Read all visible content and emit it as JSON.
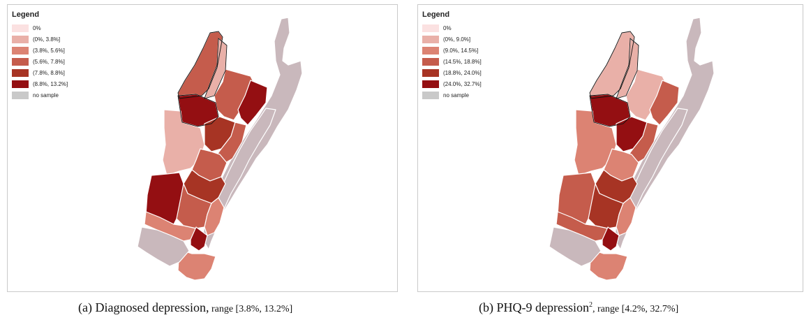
{
  "colors": {
    "c0": "#fbe1e1",
    "c1": "#e9b0a8",
    "c2": "#dc8373",
    "c3": "#c55c4c",
    "c4": "#a73424",
    "c5": "#940f12",
    "nosample": "#c9b8bc",
    "border": "#ffffff",
    "outline": "#111111"
  },
  "panels": [
    {
      "legend_title": "Legend",
      "legend": [
        {
          "label": "0%",
          "color": "#fbe1e1"
        },
        {
          "label": "(0%, 3.8%]",
          "color": "#e9b0a8"
        },
        {
          "label": "(3.8%, 5.6%]",
          "color": "#dc8373"
        },
        {
          "label": "(5.6%, 7.8%]",
          "color": "#c55c4c"
        },
        {
          "label": "(7.8%, 8.8%]",
          "color": "#a73424"
        },
        {
          "label": "(8.8%, 13.2%]",
          "color": "#940f12"
        },
        {
          "label": "no sample",
          "color": "#c9c9c9"
        }
      ],
      "caption_prefix": "(a) Diagnosed depression,",
      "caption_sup": "",
      "caption_range": " range [3.8%, 13.2%]",
      "region_classes": {
        "north_strip": 3,
        "north_right": 1,
        "ne_block": 3,
        "ne_dark": 5,
        "center_dark": 5,
        "west_large": 1,
        "mid_dark": 4,
        "mid_right": 3,
        "mid_center": 3,
        "south_dark_band": 4,
        "sw_dark": 5,
        "south_center": 3,
        "south_right": 2,
        "sw_lower": 2,
        "tip_dark": 5,
        "bottom_block": 2,
        "sw_corner": "nosample",
        "east_strip": "nosample",
        "north_tail": "nosample"
      }
    },
    {
      "legend_title": "Legend",
      "legend": [
        {
          "label": "0%",
          "color": "#fbe1e1"
        },
        {
          "label": "(0%, 9.0%]",
          "color": "#e9b0a8"
        },
        {
          "label": "(9.0%, 14.5%]",
          "color": "#dc8373"
        },
        {
          "label": "(14.5%, 18.8%]",
          "color": "#c55c4c"
        },
        {
          "label": "(18.8%, 24.0%]",
          "color": "#a73424"
        },
        {
          "label": "(24.0%, 32.7%]",
          "color": "#940f12"
        },
        {
          "label": "no sample",
          "color": "#c9c9c9"
        }
      ],
      "caption_prefix": "(b) PHQ-9 depression",
      "caption_sup": "2",
      "caption_range": ", range [4.2%, 32.7%]",
      "region_classes": {
        "north_strip": 1,
        "north_right": 1,
        "ne_block": 1,
        "ne_dark": 3,
        "center_dark": 5,
        "west_large": 2,
        "mid_dark": 5,
        "mid_right": 3,
        "mid_center": 2,
        "south_dark_band": 4,
        "sw_dark": 3,
        "south_center": 4,
        "south_right": 2,
        "sw_lower": 3,
        "tip_dark": 5,
        "bottom_block": 2,
        "sw_corner": "nosample",
        "east_strip": "nosample",
        "north_tail": "nosample"
      }
    }
  ]
}
